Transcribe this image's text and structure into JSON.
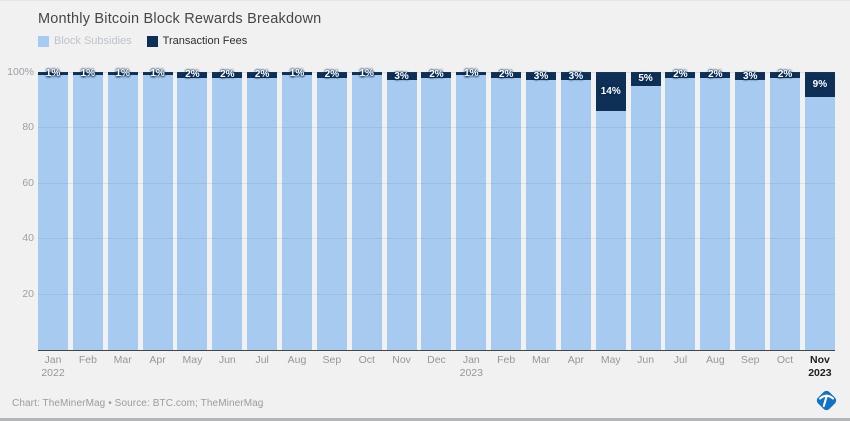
{
  "header": {
    "title": "Monthly Bitcoin Block Rewards Breakdown"
  },
  "legend": [
    {
      "label": "Block Subsidies",
      "color": "#a7cbf0",
      "muted": true
    },
    {
      "label": "Transaction Fees",
      "color": "#0e3057",
      "muted": false
    }
  ],
  "chart_data": {
    "type": "bar",
    "stacked": true,
    "title": "Monthly Bitcoin Block Rewards Breakdown",
    "xlabel": "",
    "ylabel": "",
    "ylim": [
      0,
      100
    ],
    "grid": true,
    "legend_position": "top",
    "categories": [
      "Jan 2022",
      "Feb 2022",
      "Mar 2022",
      "Apr 2022",
      "May 2022",
      "Jun 2022",
      "Jul 2022",
      "Aug 2022",
      "Sep 2022",
      "Oct 2022",
      "Nov 2022",
      "Dec 2022",
      "Jan 2023",
      "Feb 2023",
      "Mar 2023",
      "Apr 2023",
      "May 2023",
      "Jun 2023",
      "Jul 2023",
      "Aug 2023",
      "Sep 2023",
      "Oct 2023",
      "Nov 2023"
    ],
    "series": [
      {
        "name": "Block Subsidies",
        "color": "#a7cbf0",
        "values": [
          99,
          99,
          99,
          99,
          98,
          98,
          98,
          99,
          98,
          99,
          97,
          98,
          99,
          98,
          97,
          97,
          86,
          95,
          98,
          98,
          97,
          98,
          91
        ]
      },
      {
        "name": "Transaction Fees",
        "color": "#0e3057",
        "values": [
          1,
          1,
          1,
          1,
          2,
          2,
          2,
          1,
          2,
          1,
          3,
          2,
          1,
          2,
          3,
          3,
          14,
          5,
          2,
          2,
          3,
          2,
          9
        ]
      }
    ],
    "bar_labels": [
      "1%",
      "1%",
      "1%",
      "1%",
      "2%",
      "2%",
      "2%",
      "1%",
      "2%",
      "1%",
      "3%",
      "2%",
      "1%",
      "2%",
      "3%",
      "3%",
      "14%",
      "5%",
      "2%",
      "2%",
      "3%",
      "2%",
      "9%"
    ],
    "y_ticks": [
      {
        "value": 100,
        "label": "100%"
      },
      {
        "value": 80,
        "label": "80"
      },
      {
        "value": 60,
        "label": "60"
      },
      {
        "value": 40,
        "label": "40"
      },
      {
        "value": 20,
        "label": "20"
      }
    ],
    "x_tick_labels": [
      {
        "month": "Jan",
        "year": "2022",
        "bold": false
      },
      {
        "month": "Feb",
        "year": "",
        "bold": false
      },
      {
        "month": "Mar",
        "year": "",
        "bold": false
      },
      {
        "month": "Apr",
        "year": "",
        "bold": false
      },
      {
        "month": "May",
        "year": "",
        "bold": false
      },
      {
        "month": "Jun",
        "year": "",
        "bold": false
      },
      {
        "month": "Jul",
        "year": "",
        "bold": false
      },
      {
        "month": "Aug",
        "year": "",
        "bold": false
      },
      {
        "month": "Sep",
        "year": "",
        "bold": false
      },
      {
        "month": "Oct",
        "year": "",
        "bold": false
      },
      {
        "month": "Nov",
        "year": "",
        "bold": false
      },
      {
        "month": "Dec",
        "year": "",
        "bold": false
      },
      {
        "month": "Jan",
        "year": "2023",
        "bold": false
      },
      {
        "month": "Feb",
        "year": "",
        "bold": false
      },
      {
        "month": "Mar",
        "year": "",
        "bold": false
      },
      {
        "month": "Apr",
        "year": "",
        "bold": false
      },
      {
        "month": "May",
        "year": "",
        "bold": false
      },
      {
        "month": "Jun",
        "year": "",
        "bold": false
      },
      {
        "month": "Jul",
        "year": "",
        "bold": false
      },
      {
        "month": "Aug",
        "year": "",
        "bold": false
      },
      {
        "month": "Sep",
        "year": "",
        "bold": false
      },
      {
        "month": "Oct",
        "year": "",
        "bold": false
      },
      {
        "month": "Nov",
        "year": "2023",
        "bold": true
      }
    ]
  },
  "footer": {
    "credit": "Chart: TheMinerMag • Source: BTC.com; TheMinerMag"
  },
  "logo": {
    "name": "TheMinerMag",
    "color": "#1272c4"
  }
}
